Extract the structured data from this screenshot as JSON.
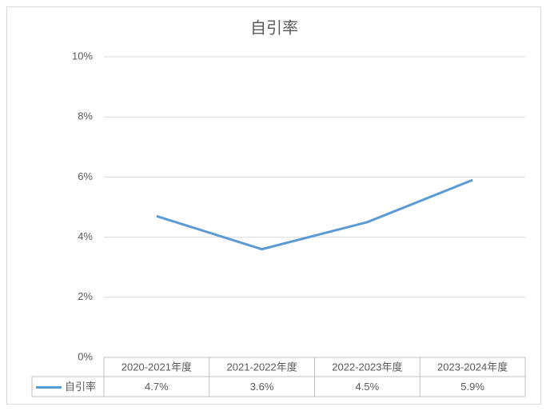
{
  "chart_data": {
    "type": "line",
    "title": "自引率",
    "categories": [
      "2020-2021年度",
      "2021-2022年度",
      "2022-2023年度",
      "2023-2024年度"
    ],
    "series": [
      {
        "name": "自引率",
        "color": "#5b9bd5",
        "values": [
          4.7,
          3.6,
          4.5,
          5.9
        ],
        "value_labels": [
          "4.7%",
          "3.6%",
          "4.5%",
          "5.9%"
        ]
      }
    ],
    "ylim": [
      0,
      10
    ],
    "yticks": [
      {
        "value": 0,
        "label": "0%"
      },
      {
        "value": 2,
        "label": "2%"
      },
      {
        "value": 4,
        "label": "4%"
      },
      {
        "value": 6,
        "label": "6%"
      },
      {
        "value": 8,
        "label": "8%"
      },
      {
        "value": 10,
        "label": "10%"
      }
    ],
    "grid": true
  }
}
